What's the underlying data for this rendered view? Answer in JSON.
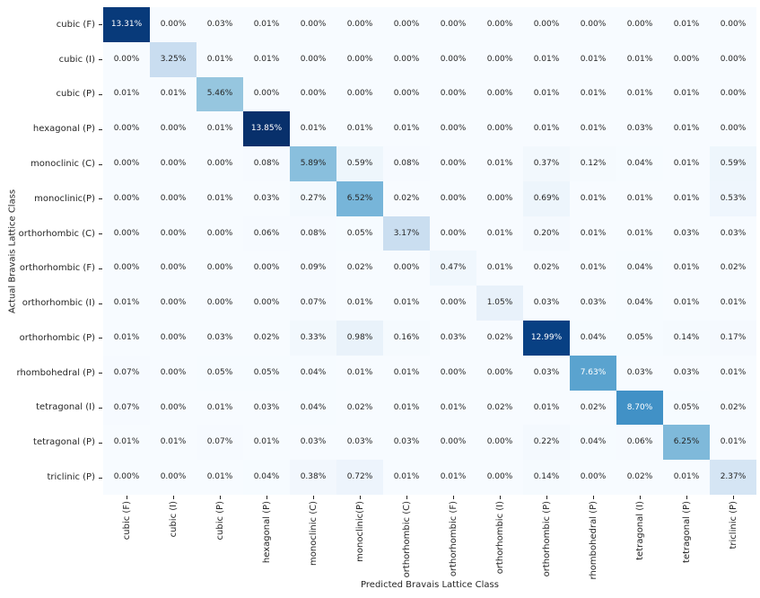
{
  "chart_data": {
    "type": "heatmap",
    "title": "",
    "xlabel": "Predicted Bravais Lattice Class",
    "ylabel": "Actual Bravais Lattice Class",
    "x_categories": [
      "cubic (F)",
      "cubic (I)",
      "cubic (P)",
      "hexagonal (P)",
      "monoclinic (C)",
      "monoclinic(P)",
      "orthorhombic (C)",
      "orthorhombic (F)",
      "orthorhombic (I)",
      "orthorhombic (P)",
      "rhombohedral (P)",
      "tetragonal (I)",
      "tetragonal (P)",
      "triclinic (P)"
    ],
    "y_categories": [
      "cubic (F)",
      "cubic (I)",
      "cubic (P)",
      "hexagonal (P)",
      "monoclinic (C)",
      "monoclinic(P)",
      "orthorhombic (C)",
      "orthorhombic (F)",
      "orthorhombic (I)",
      "orthorhombic (P)",
      "rhombohedral (P)",
      "tetragonal (I)",
      "tetragonal (P)",
      "triclinic (P)"
    ],
    "values_percent": [
      [
        13.31,
        0.0,
        0.03,
        0.01,
        0.0,
        0.0,
        0.0,
        0.0,
        0.0,
        0.0,
        0.0,
        0.0,
        0.01,
        0.0
      ],
      [
        0.0,
        3.25,
        0.01,
        0.01,
        0.0,
        0.0,
        0.0,
        0.0,
        0.0,
        0.01,
        0.01,
        0.01,
        0.0,
        0.0
      ],
      [
        0.01,
        0.01,
        5.46,
        0.0,
        0.0,
        0.0,
        0.0,
        0.0,
        0.0,
        0.01,
        0.01,
        0.01,
        0.01,
        0.0
      ],
      [
        0.0,
        0.0,
        0.01,
        13.85,
        0.01,
        0.01,
        0.01,
        0.0,
        0.0,
        0.01,
        0.01,
        0.03,
        0.01,
        0.0
      ],
      [
        0.0,
        0.0,
        0.0,
        0.08,
        5.89,
        0.59,
        0.08,
        0.0,
        0.01,
        0.37,
        0.12,
        0.04,
        0.01,
        0.59
      ],
      [
        0.0,
        0.0,
        0.01,
        0.03,
        0.27,
        6.52,
        0.02,
        0.0,
        0.0,
        0.69,
        0.01,
        0.01,
        0.01,
        0.53
      ],
      [
        0.0,
        0.0,
        0.0,
        0.06,
        0.08,
        0.05,
        3.17,
        0.0,
        0.01,
        0.2,
        0.01,
        0.01,
        0.03,
        0.03
      ],
      [
        0.0,
        0.0,
        0.0,
        0.0,
        0.09,
        0.02,
        0.0,
        0.47,
        0.01,
        0.02,
        0.01,
        0.04,
        0.01,
        0.02
      ],
      [
        0.01,
        0.0,
        0.0,
        0.0,
        0.07,
        0.01,
        0.01,
        0.0,
        1.05,
        0.03,
        0.03,
        0.04,
        0.01,
        0.01
      ],
      [
        0.01,
        0.0,
        0.03,
        0.02,
        0.33,
        0.98,
        0.16,
        0.03,
        0.02,
        12.99,
        0.04,
        0.05,
        0.14,
        0.17
      ],
      [
        0.07,
        0.0,
        0.05,
        0.05,
        0.04,
        0.01,
        0.01,
        0.0,
        0.0,
        0.03,
        7.63,
        0.03,
        0.03,
        0.01
      ],
      [
        0.07,
        0.0,
        0.01,
        0.03,
        0.04,
        0.02,
        0.01,
        0.01,
        0.02,
        0.01,
        0.02,
        8.7,
        0.05,
        0.02
      ],
      [
        0.01,
        0.01,
        0.07,
        0.01,
        0.03,
        0.03,
        0.03,
        0.0,
        0.0,
        0.22,
        0.04,
        0.06,
        6.25,
        0.01
      ],
      [
        0.0,
        0.0,
        0.01,
        0.04,
        0.38,
        0.72,
        0.01,
        0.01,
        0.0,
        0.14,
        0.0,
        0.02,
        0.01,
        2.37
      ]
    ],
    "value_suffix": "%",
    "value_decimals": 2,
    "colormap": "Blues",
    "vmin": 0,
    "vmax": 13.85,
    "colormap_stops": [
      [
        0.0,
        "#f7fbff"
      ],
      [
        0.125,
        "#deebf7"
      ],
      [
        0.25,
        "#c6dbef"
      ],
      [
        0.375,
        "#9ecae1"
      ],
      [
        0.5,
        "#6baed6"
      ],
      [
        0.625,
        "#4292c6"
      ],
      [
        0.75,
        "#2171b5"
      ],
      [
        0.875,
        "#08519c"
      ],
      [
        1.0,
        "#08306b"
      ]
    ],
    "annotation_text_dark": "#262626",
    "annotation_text_light": "#ffffff",
    "light_text_threshold": 0.5,
    "tick_color": "#262626",
    "background_color": "#ffffff",
    "legend": "none",
    "grid": false
  }
}
